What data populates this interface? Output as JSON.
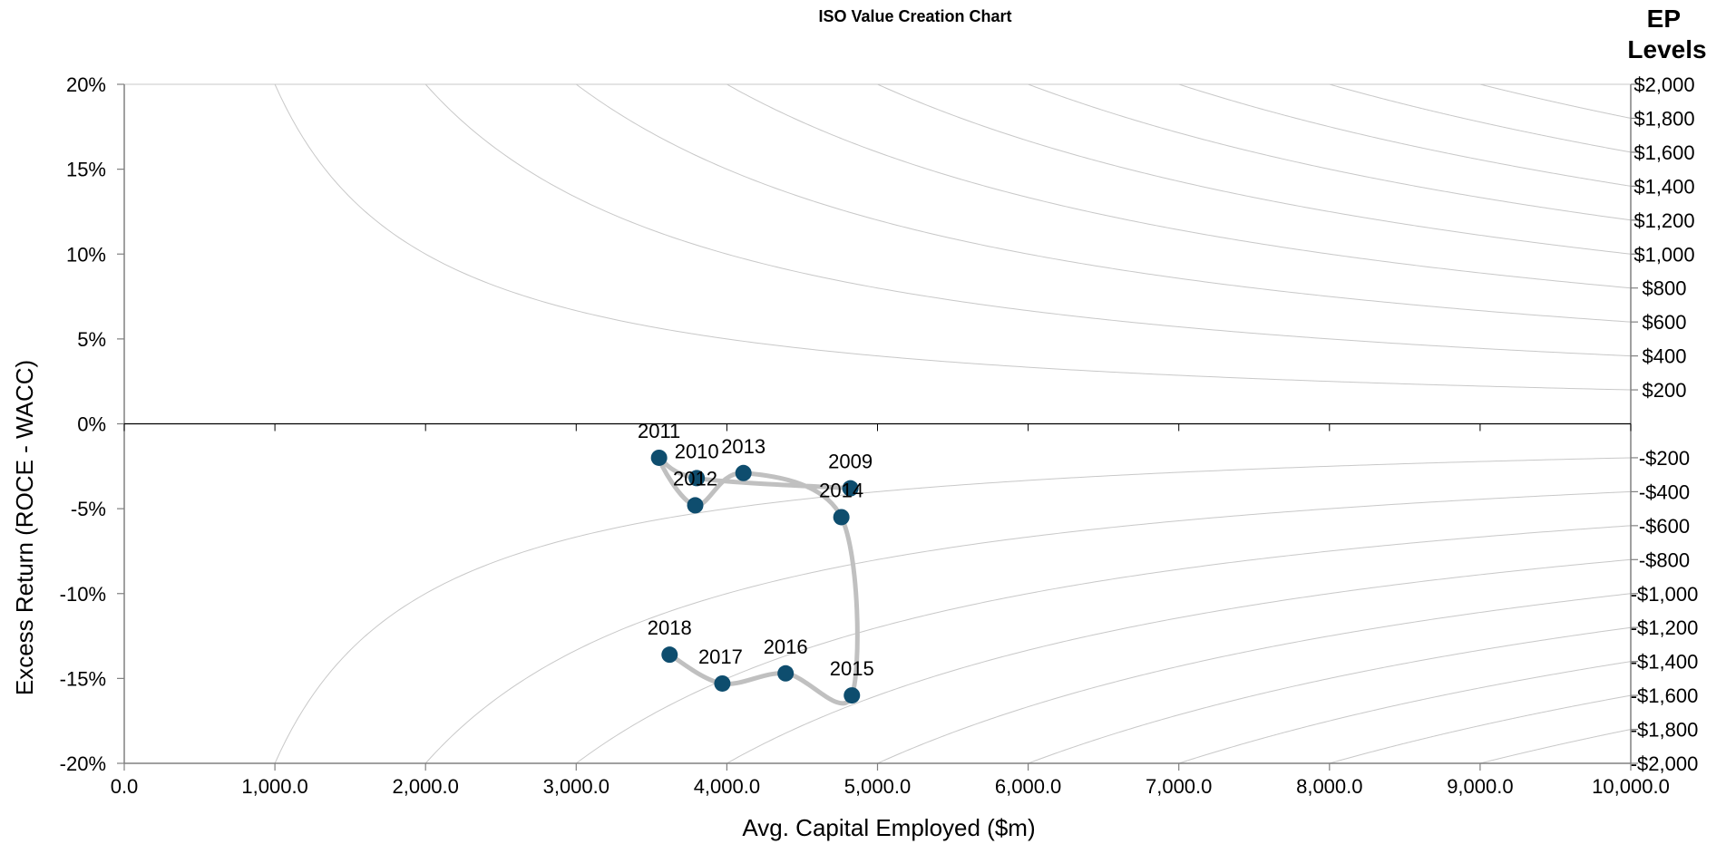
{
  "chart_data": {
    "type": "scatter",
    "title": "ISO Value Creation Chart",
    "xlabel": "Avg. Capital Employed ($m)",
    "ylabel": "Excess Return (ROCE - WACC)",
    "right_axis_title": "EP Levels",
    "xlim": [
      0,
      10000
    ],
    "ylim": [
      -0.2,
      0.2
    ],
    "x_ticks": [
      "0.0",
      "1,000.0",
      "2,000.0",
      "3,000.0",
      "4,000.0",
      "5,000.0",
      "6,000.0",
      "7,000.0",
      "8,000.0",
      "9,000.0",
      "10,000.0"
    ],
    "y_ticks": [
      "20%",
      "15%",
      "10%",
      "5%",
      "0%",
      "-5%",
      "-10%",
      "-15%",
      "-20%"
    ],
    "ep_levels": [
      {
        "label": "$2,000",
        "value": 2000
      },
      {
        "label": "$1,800",
        "value": 1800
      },
      {
        "label": "$1,600",
        "value": 1600
      },
      {
        "label": "$1,400",
        "value": 1400
      },
      {
        "label": "$1,200",
        "value": 1200
      },
      {
        "label": "$1,000",
        "value": 1000
      },
      {
        "label": "$800",
        "value": 800
      },
      {
        "label": "$600",
        "value": 600
      },
      {
        "label": "$400",
        "value": 400
      },
      {
        "label": "$200",
        "value": 200
      },
      {
        "label": "-$200",
        "value": -200
      },
      {
        "label": "-$400",
        "value": -400
      },
      {
        "label": "-$600",
        "value": -600
      },
      {
        "label": "-$800",
        "value": -800
      },
      {
        "label": "-$1,000",
        "value": -1000
      },
      {
        "label": "-$1,200",
        "value": -1200
      },
      {
        "label": "-$1,400",
        "value": -1400
      },
      {
        "label": "-$1,600",
        "value": -1600
      },
      {
        "label": "-$1,800",
        "value": -1800
      },
      {
        "label": "-$2,000",
        "value": -2000
      }
    ],
    "points": [
      {
        "year": "2009",
        "x": 4820,
        "y": -0.038
      },
      {
        "year": "2010",
        "x": 3800,
        "y": -0.032
      },
      {
        "year": "2011",
        "x": 3550,
        "y": -0.02
      },
      {
        "year": "2012",
        "x": 3790,
        "y": -0.048
      },
      {
        "year": "2013",
        "x": 4110,
        "y": -0.029
      },
      {
        "year": "2014",
        "x": 4760,
        "y": -0.055
      },
      {
        "year": "2015",
        "x": 4830,
        "y": -0.16
      },
      {
        "year": "2016",
        "x": 4390,
        "y": -0.147
      },
      {
        "year": "2017",
        "x": 3970,
        "y": -0.153
      },
      {
        "year": "2018",
        "x": 3620,
        "y": -0.136
      }
    ],
    "colors": {
      "point": "#0e4d6e",
      "path": "#c0c0c0",
      "iso_line": "#c8c8c8",
      "axis": "#808080"
    },
    "grid": false
  }
}
